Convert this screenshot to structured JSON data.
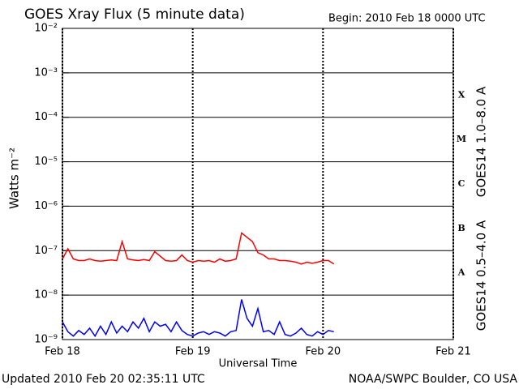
{
  "chart_data": {
    "type": "line",
    "title": "GOES Xray Flux (5 minute data)",
    "subtitle": "Begin:  2010 Feb 18 0000 UTC",
    "ylabel": "Watts m⁻²",
    "xlabel": "Universal Time",
    "footer_left": "Updated 2010 Feb 20 02:35:11 UTC",
    "footer_right": "NOAA/SWPC Boulder, CO USA",
    "ylog": true,
    "grid": true,
    "ylim": [
      1e-09,
      0.01
    ],
    "yticks": [
      {
        "value": 0.01,
        "label": "10⁻²"
      },
      {
        "value": 0.001,
        "label": "10⁻³"
      },
      {
        "value": 0.0001,
        "label": "10⁻⁴"
      },
      {
        "value": 1e-05,
        "label": "10⁻⁵"
      },
      {
        "value": 1e-06,
        "label": "10⁻⁶"
      },
      {
        "value": 1e-07,
        "label": "10⁻⁷"
      },
      {
        "value": 1e-08,
        "label": "10⁻⁸"
      },
      {
        "value": 1e-09,
        "label": "10⁻⁹"
      }
    ],
    "xlim": [
      0,
      72
    ],
    "xticks": [
      {
        "value": 0,
        "label": "Feb 18"
      },
      {
        "value": 24,
        "label": "Feb 19"
      },
      {
        "value": 48,
        "label": "Feb 20"
      },
      {
        "value": 72,
        "label": "Feb 21"
      }
    ],
    "flare_classes": [
      "A",
      "B",
      "C",
      "M",
      "X"
    ],
    "x": [
      0,
      1,
      2,
      3,
      4,
      5,
      6,
      7,
      8,
      9,
      10,
      11,
      12,
      13,
      14,
      15,
      16,
      17,
      18,
      19,
      20,
      21,
      22,
      23,
      24,
      25,
      26,
      27,
      28,
      29,
      30,
      31,
      32,
      33,
      34,
      35,
      36,
      37,
      38,
      39,
      40,
      41,
      42,
      43,
      44,
      45,
      46,
      47,
      48,
      49,
      50
    ],
    "series": [
      {
        "name": "GOES14 1.0–8.0 A",
        "color": "#ff0000",
        "values": [
          6.5e-08,
          1.1e-07,
          6.5e-08,
          6e-08,
          6e-08,
          6.5e-08,
          6e-08,
          5.8e-08,
          6e-08,
          6.2e-08,
          6e-08,
          1.6e-07,
          6.5e-08,
          6.2e-08,
          6e-08,
          6.3e-08,
          6e-08,
          9.5e-08,
          7.5e-08,
          6e-08,
          5.8e-08,
          6e-08,
          8e-08,
          6e-08,
          5.5e-08,
          6e-08,
          5.8e-08,
          6e-08,
          5.5e-08,
          6.5e-08,
          5.8e-08,
          6e-08,
          6.5e-08,
          2.5e-07,
          2e-07,
          1.6e-07,
          9e-08,
          8e-08,
          6.5e-08,
          6.5e-08,
          6e-08,
          6e-08,
          5.8e-08,
          5.5e-08,
          5e-08,
          5.5e-08,
          5.2e-08,
          5.5e-08,
          6e-08,
          6e-08,
          5e-08
        ]
      },
      {
        "name": "GOES14 0.5–4.0 A",
        "color": "#0000ff",
        "values": [
          2.5e-09,
          1.5e-09,
          1.2e-09,
          1.6e-09,
          1.3e-09,
          1.8e-09,
          1.2e-09,
          2e-09,
          1.3e-09,
          2.5e-09,
          1.4e-09,
          2e-09,
          1.5e-09,
          2.5e-09,
          1.8e-09,
          3e-09,
          1.5e-09,
          2.5e-09,
          2e-09,
          2.2e-09,
          1.5e-09,
          2.5e-09,
          1.6e-09,
          1.3e-09,
          1.2e-09,
          1.4e-09,
          1.5e-09,
          1.3e-09,
          1.5e-09,
          1.4e-09,
          1.2e-09,
          1.5e-09,
          1.6e-09,
          8e-09,
          3e-09,
          2e-09,
          5e-09,
          1.5e-09,
          1.6e-09,
          1.3e-09,
          2.5e-09,
          1.3e-09,
          1.2e-09,
          1.4e-09,
          1.8e-09,
          1.3e-09,
          1.2e-09,
          1.5e-09,
          1.3e-09,
          1.6e-09,
          1.5e-09
        ]
      }
    ]
  }
}
